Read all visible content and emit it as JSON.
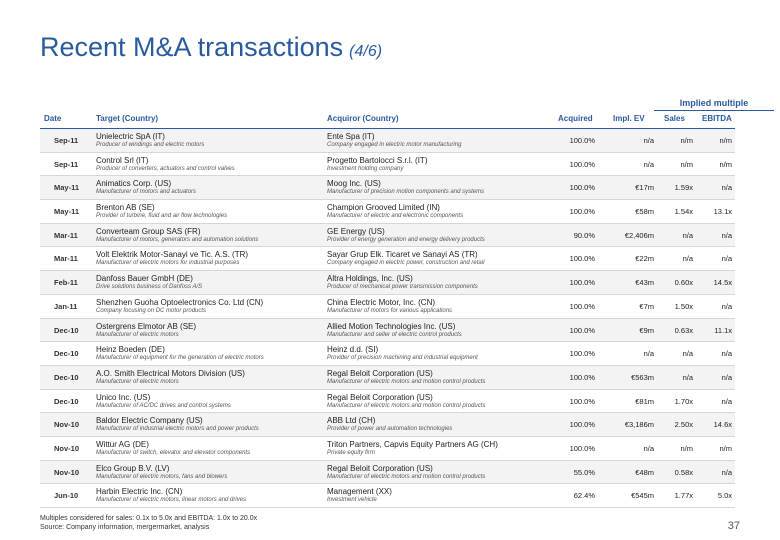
{
  "title": "Recent M&A transactions",
  "title_sub": "(4/6)",
  "header": {
    "implied": "Implied multiple",
    "date": "Date",
    "target": "Target (Country)",
    "acquiror": "Acquiror (Country)",
    "acquired": "Acquired",
    "impl_ev": "Impl. EV",
    "sales": "Sales",
    "ebitda": "EBITDA"
  },
  "rows": [
    {
      "date": "Sep-11",
      "target": "Unielectric SpA (IT)",
      "target_desc": "Producer of windings and electric motors",
      "acquiror": "Ente Spa (IT)",
      "acquiror_desc": "Company engaged in electric motor manufacturing",
      "acquired": "100.0%",
      "ev": "n/a",
      "sales": "n/m",
      "ebitda": "n/m"
    },
    {
      "date": "Sep-11",
      "target": "Control Srl (IT)",
      "target_desc": "Producer of converters, actuators and control valves",
      "acquiror": "Progetto Bartolocci S.r.l. (IT)",
      "acquiror_desc": "Investment holding company",
      "acquired": "100.0%",
      "ev": "n/a",
      "sales": "n/m",
      "ebitda": "n/m"
    },
    {
      "date": "May-11",
      "target": "Animatics Corp. (US)",
      "target_desc": "Manufacturer of motors and actuators",
      "acquiror": "Moog Inc. (US)",
      "acquiror_desc": "Manufacturer of precision motion components and systems",
      "acquired": "100.0%",
      "ev": "€17m",
      "sales": "1.59x",
      "ebitda": "n/a"
    },
    {
      "date": "May-11",
      "target": "Brenton AB (SE)",
      "target_desc": "Provider of turbine, fluid and air flow technologies",
      "acquiror": "Champion Grooved Limited (IN)",
      "acquiror_desc": "Manufacturer of electric and electronic components",
      "acquired": "100.0%",
      "ev": "€58m",
      "sales": "1.54x",
      "ebitda": "13.1x"
    },
    {
      "date": "Mar-11",
      "target": "Converteam Group SAS (FR)",
      "target_desc": "Manufacturer of motors, generators and automation solutions",
      "acquiror": "GE Energy (US)",
      "acquiror_desc": "Provider of energy generation and energy delivery products",
      "acquired": "90.0%",
      "ev": "€2,406m",
      "sales": "n/a",
      "ebitda": "n/a"
    },
    {
      "date": "Mar-11",
      "target": "Volt Elektrik Motor-Sanayi ve Tic. A.S. (TR)",
      "target_desc": "Manufacturer of electric motors for industrial purposes",
      "acquiror": "Sayar Grup Elk. Ticaret ve Sanayi AS (TR)",
      "acquiror_desc": "Company engaged in electric power, construction and retail",
      "acquired": "100.0%",
      "ev": "€22m",
      "sales": "n/a",
      "ebitda": "n/a"
    },
    {
      "date": "Feb-11",
      "target": "Danfoss Bauer GmbH (DE)",
      "target_desc": "Drive solutions business of Danfoss A/S",
      "acquiror": "Altra Holdings, Inc. (US)",
      "acquiror_desc": "Producer of mechanical power transmission components",
      "acquired": "100.0%",
      "ev": "€43m",
      "sales": "0.60x",
      "ebitda": "14.5x"
    },
    {
      "date": "Jan-11",
      "target": "Shenzhen Guoha Optoelectronics Co. Ltd (CN)",
      "target_desc": "Company focusing on DC motor products",
      "acquiror": "China Electric Motor, Inc. (CN)",
      "acquiror_desc": "Manufacturer of motors for various applications",
      "acquired": "100.0%",
      "ev": "€7m",
      "sales": "1.50x",
      "ebitda": "n/a"
    },
    {
      "date": "Dec-10",
      "target": "Ostergrens Elmotor AB (SE)",
      "target_desc": "Manufacturer of electric motors",
      "acquiror": "Allied Motion Technologies Inc. (US)",
      "acquiror_desc": "Manufacturer and seller of electric control products",
      "acquired": "100.0%",
      "ev": "€9m",
      "sales": "0.63x",
      "ebitda": "11.1x"
    },
    {
      "date": "Dec-10",
      "target": "Heinz Boeden (DE)",
      "target_desc": "Manufacturer of equipment for the generation of electric motors",
      "acquiror": "Heinz d.d. (SI)",
      "acquiror_desc": "Provider of precision machining and industrial equipment",
      "acquired": "100.0%",
      "ev": "n/a",
      "sales": "n/a",
      "ebitda": "n/a"
    },
    {
      "date": "Dec-10",
      "target": "A.O. Smith Electrical Motors Division (US)",
      "target_desc": "Manufacturer of electric motors",
      "acquiror": "Regal Beloit Corporation (US)",
      "acquiror_desc": "Manufacturer of electric motors and motion control products",
      "acquired": "100.0%",
      "ev": "€563m",
      "sales": "n/a",
      "ebitda": "n/a"
    },
    {
      "date": "Dec-10",
      "target": "Unico Inc. (US)",
      "target_desc": "Manufacturer of AC/DC drives and control systems",
      "acquiror": "Regal Beloit Corporation (US)",
      "acquiror_desc": "Manufacturer of electric motors and motion control products",
      "acquired": "100.0%",
      "ev": "€81m",
      "sales": "1.70x",
      "ebitda": "n/a"
    },
    {
      "date": "Nov-10",
      "target": "Baldor Electric Company (US)",
      "target_desc": "Manufacturer of industrial electric motors and power products",
      "acquiror": "ABB Ltd (CH)",
      "acquiror_desc": "Provider of power and automation technologies",
      "acquired": "100.0%",
      "ev": "€3,186m",
      "sales": "2.50x",
      "ebitda": "14.6x"
    },
    {
      "date": "Nov-10",
      "target": "Wittur AG (DE)",
      "target_desc": "Manufacturer of switch, elevator and elevator components",
      "acquiror": "Triton Partners, Capvis Equity Partners AG (CH)",
      "acquiror_desc": "Private equity firm",
      "acquired": "100.0%",
      "ev": "n/a",
      "sales": "n/m",
      "ebitda": "n/m"
    },
    {
      "date": "Nov-10",
      "target": "Elco Group B.V. (LV)",
      "target_desc": "Manufacturer of electric motors, fans and blowers",
      "acquiror": "Regal Beloit Corporation (US)",
      "acquiror_desc": "Manufacturer of electric motors and motion control products",
      "acquired": "55.0%",
      "ev": "€48m",
      "sales": "0.58x",
      "ebitda": "n/a"
    },
    {
      "date": "Jun-10",
      "target": "Harbin Electric Inc. (CN)",
      "target_desc": "Manufacturer of electric motors, linear motors and drives",
      "acquiror": "Management (XX)",
      "acquiror_desc": "Investment vehicle",
      "acquired": "62.4%",
      "ev": "€545m",
      "sales": "1.77x",
      "ebitda": "5.0x"
    }
  ],
  "footnote_line1": "Multiples considered for sales: 0.1x to 5.0x and EBITDA: 1.0x to 20.0x",
  "footnote_line2": "Source: Company information, mergermarket, analysis",
  "page_number": "37"
}
